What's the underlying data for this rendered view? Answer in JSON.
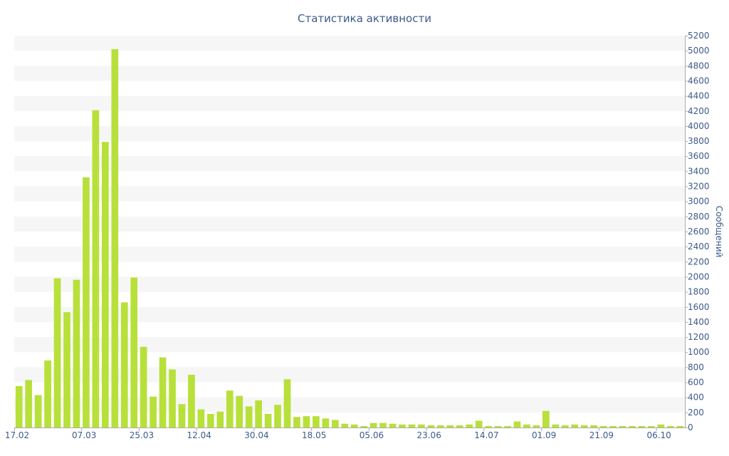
{
  "chart_data": {
    "type": "bar",
    "title": "Статистика активности",
    "xlabel": "",
    "ylabel": "Сообщений",
    "ylim": [
      0,
      5200
    ],
    "y_ticks": [
      0,
      200,
      400,
      600,
      800,
      1000,
      1200,
      1400,
      1600,
      1800,
      2000,
      2200,
      2400,
      2600,
      2800,
      3000,
      3200,
      3400,
      3600,
      3800,
      4000,
      4200,
      4400,
      4600,
      4800,
      5000,
      5200
    ],
    "y_axis_side": "right",
    "grid": "alternating horizontal bands",
    "x_tick_labels": [
      {
        "label": "17.02",
        "index": 0
      },
      {
        "label": "07.03",
        "index": 7
      },
      {
        "label": "25.03",
        "index": 13
      },
      {
        "label": "12.04",
        "index": 19
      },
      {
        "label": "30.04",
        "index": 25
      },
      {
        "label": "18.05",
        "index": 31
      },
      {
        "label": "05.06",
        "index": 37
      },
      {
        "label": "23.06",
        "index": 43
      },
      {
        "label": "14.07",
        "index": 49
      },
      {
        "label": "01.09",
        "index": 55
      },
      {
        "label": "21.09",
        "index": 61
      },
      {
        "label": "06.10",
        "index": 67
      }
    ],
    "values": [
      550,
      630,
      430,
      890,
      1980,
      1530,
      1960,
      3320,
      4210,
      3790,
      5020,
      1660,
      1990,
      1070,
      410,
      930,
      770,
      310,
      700,
      240,
      180,
      210,
      490,
      420,
      280,
      360,
      180,
      300,
      640,
      140,
      150,
      150,
      120,
      100,
      50,
      40,
      20,
      60,
      60,
      50,
      40,
      40,
      40,
      30,
      30,
      30,
      30,
      40,
      90,
      20,
      20,
      20,
      80,
      40,
      30,
      220,
      40,
      30,
      40,
      30,
      30,
      20,
      20,
      20,
      20,
      20,
      20,
      40,
      20,
      20
    ],
    "colors": {
      "bar": "#b8e03a",
      "text": "#3d5a8a",
      "band": "#f6f6f6",
      "axis": "#aaaaaa"
    }
  }
}
